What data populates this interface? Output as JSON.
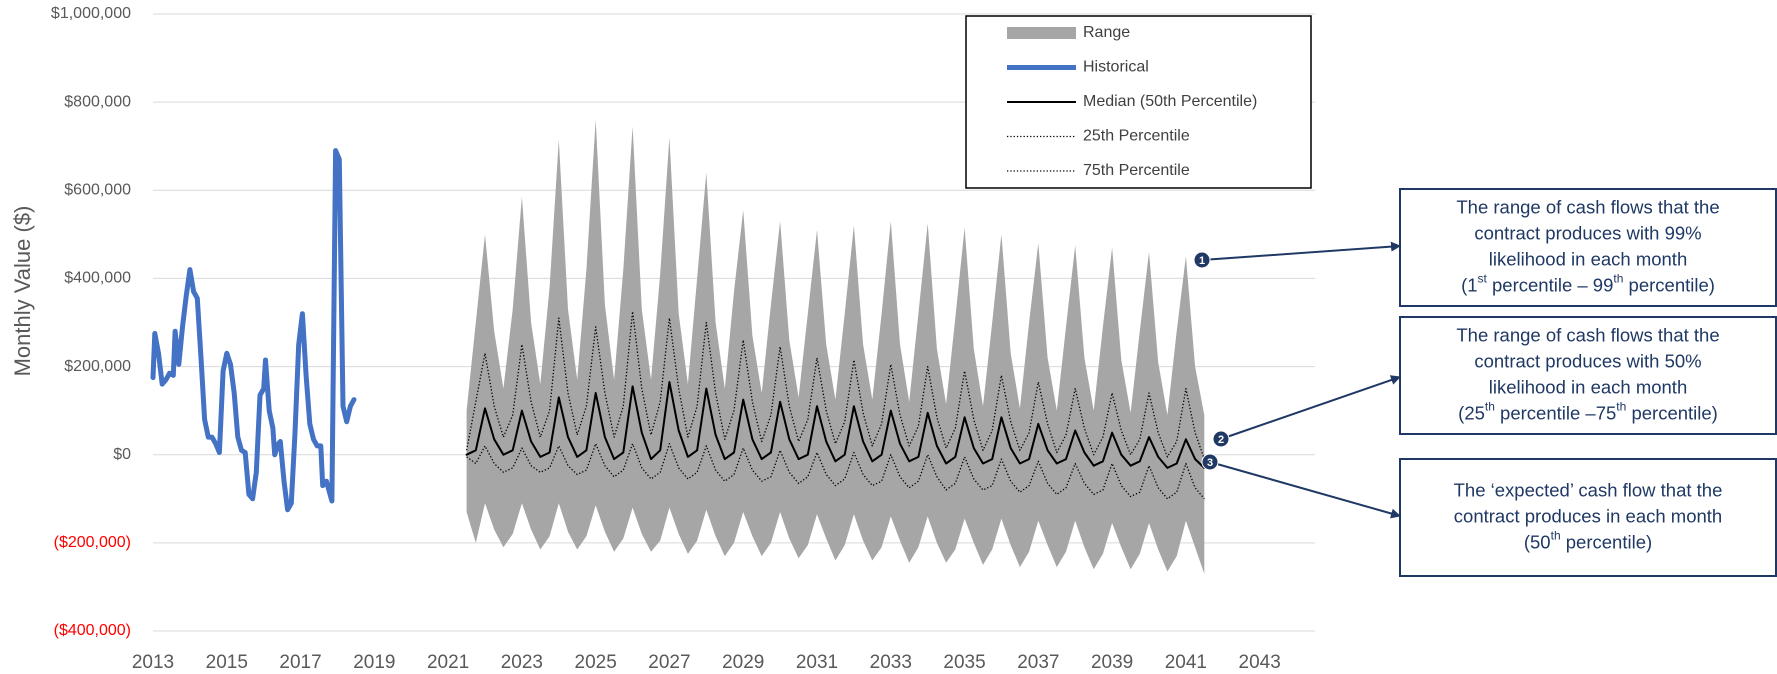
{
  "chart_data": {
    "type": "line",
    "y_label": "Monthly Value ($)",
    "xlim": [
      2013,
      2044.5
    ],
    "xticks": [
      2013,
      2015,
      2017,
      2019,
      2021,
      2023,
      2025,
      2027,
      2029,
      2031,
      2033,
      2035,
      2037,
      2039,
      2041,
      2043
    ],
    "ylim": [
      -400000,
      1000000
    ],
    "yticks": [
      {
        "value": -400000,
        "label": "($400,000)"
      },
      {
        "value": -200000,
        "label": "($200,000)"
      },
      {
        "value": 0,
        "label": "$0"
      },
      {
        "value": 200000,
        "label": "$200,000"
      },
      {
        "value": 400000,
        "label": "$400,000"
      },
      {
        "value": 600000,
        "label": "$600,000"
      },
      {
        "value": 800000,
        "label": "$800,000"
      },
      {
        "value": 1000000,
        "label": "$1,000,000"
      }
    ],
    "tick_color": "#595959",
    "negative_tick_color": "#ff0000",
    "grid": true,
    "legend": "upper right",
    "series": [
      {
        "name": "Range",
        "style": "band",
        "color": "#a6a6a6",
        "x": [
          2021.5,
          2021.75,
          2022,
          2022.25,
          2022.5,
          2022.75,
          2023,
          2023.25,
          2023.5,
          2023.75,
          2024,
          2024.25,
          2024.5,
          2024.75,
          2025,
          2025.25,
          2025.5,
          2025.75,
          2026,
          2026.25,
          2026.5,
          2026.75,
          2027,
          2027.25,
          2027.5,
          2027.75,
          2028,
          2028.25,
          2028.5,
          2028.75,
          2029,
          2029.25,
          2029.5,
          2029.75,
          2030,
          2030.25,
          2030.5,
          2030.75,
          2031,
          2031.25,
          2031.5,
          2031.75,
          2032,
          2032.25,
          2032.5,
          2032.75,
          2033,
          2033.25,
          2033.5,
          2033.75,
          2034,
          2034.25,
          2034.5,
          2034.75,
          2035,
          2035.25,
          2035.5,
          2035.75,
          2036,
          2036.25,
          2036.5,
          2036.75,
          2037,
          2037.25,
          2037.5,
          2037.75,
          2038,
          2038.25,
          2038.5,
          2038.75,
          2039,
          2039.25,
          2039.5,
          2039.75,
          2040,
          2040.25,
          2040.5,
          2040.75,
          2041,
          2041.25,
          2041.5
        ],
        "high": [
          100000,
          300000,
          500000,
          280000,
          150000,
          330000,
          585000,
          300000,
          160000,
          380000,
          715000,
          330000,
          170000,
          420000,
          760000,
          340000,
          170000,
          420000,
          745000,
          330000,
          170000,
          410000,
          720000,
          320000,
          160000,
          400000,
          640000,
          300000,
          150000,
          370000,
          555000,
          270000,
          140000,
          340000,
          530000,
          260000,
          130000,
          320000,
          510000,
          250000,
          125000,
          320000,
          520000,
          250000,
          125000,
          320000,
          530000,
          250000,
          120000,
          320000,
          525000,
          240000,
          115000,
          310000,
          515000,
          240000,
          110000,
          300000,
          500000,
          230000,
          105000,
          300000,
          480000,
          220000,
          100000,
          290000,
          475000,
          220000,
          100000,
          290000,
          470000,
          215000,
          95000,
          280000,
          460000,
          210000,
          90000,
          280000,
          450000,
          200000,
          90000
        ],
        "low": [
          -130000,
          -200000,
          -110000,
          -170000,
          -210000,
          -180000,
          -110000,
          -170000,
          -215000,
          -185000,
          -110000,
          -175000,
          -215000,
          -185000,
          -115000,
          -175000,
          -220000,
          -190000,
          -120000,
          -180000,
          -220000,
          -195000,
          -120000,
          -180000,
          -225000,
          -195000,
          -125000,
          -185000,
          -230000,
          -200000,
          -130000,
          -185000,
          -230000,
          -200000,
          -130000,
          -190000,
          -235000,
          -205000,
          -135000,
          -190000,
          -240000,
          -205000,
          -135000,
          -195000,
          -240000,
          -210000,
          -140000,
          -195000,
          -245000,
          -210000,
          -140000,
          -200000,
          -245000,
          -215000,
          -145000,
          -200000,
          -250000,
          -215000,
          -145000,
          -205000,
          -255000,
          -220000,
          -150000,
          -205000,
          -255000,
          -220000,
          -150000,
          -210000,
          -260000,
          -225000,
          -155000,
          -210000,
          -260000,
          -225000,
          -155000,
          -215000,
          -265000,
          -230000,
          -150000,
          -210000,
          -270000
        ]
      },
      {
        "name": "Historical",
        "style": "solid",
        "color": "#4472c4",
        "width": 5,
        "x": [
          2013,
          2013.05,
          2013.15,
          2013.25,
          2013.35,
          2013.45,
          2013.55,
          2013.6,
          2013.7,
          2013.8,
          2013.9,
          2014,
          2014.1,
          2014.2,
          2014.3,
          2014.4,
          2014.5,
          2014.6,
          2014.7,
          2014.8,
          2014.9,
          2015,
          2015.1,
          2015.2,
          2015.3,
          2015.4,
          2015.5,
          2015.6,
          2015.7,
          2015.8,
          2015.9,
          2016,
          2016.05,
          2016.15,
          2016.25,
          2016.3,
          2016.4,
          2016.45,
          2016.55,
          2016.65,
          2016.75,
          2016.85,
          2016.95,
          2017.05,
          2017.15,
          2017.25,
          2017.35,
          2017.45,
          2017.55,
          2017.6,
          2017.7,
          2017.85,
          2017.95,
          2018.05,
          2018.15,
          2018.25,
          2018.35,
          2018.45
        ],
        "values": [
          175000,
          275000,
          230000,
          160000,
          170000,
          185000,
          180000,
          280000,
          205000,
          290000,
          360000,
          420000,
          370000,
          355000,
          220000,
          80000,
          40000,
          40000,
          25000,
          5000,
          190000,
          230000,
          205000,
          140000,
          40000,
          10000,
          5000,
          -90000,
          -100000,
          -40000,
          135000,
          150000,
          215000,
          100000,
          60000,
          0,
          25000,
          30000,
          -60000,
          -125000,
          -110000,
          50000,
          250000,
          320000,
          180000,
          70000,
          35000,
          20000,
          20000,
          -70000,
          -60000,
          -105000,
          690000,
          670000,
          110000,
          75000,
          110000,
          125000
        ]
      },
      {
        "name": "Median (50th Percentile)",
        "style": "solid",
        "color": "#000000",
        "width": 2,
        "x": [
          2021.5,
          2021.75,
          2022,
          2022.25,
          2022.5,
          2022.75,
          2023,
          2023.25,
          2023.5,
          2023.75,
          2024,
          2024.25,
          2024.5,
          2024.75,
          2025,
          2025.25,
          2025.5,
          2025.75,
          2026,
          2026.25,
          2026.5,
          2026.75,
          2027,
          2027.25,
          2027.5,
          2027.75,
          2028,
          2028.25,
          2028.5,
          2028.75,
          2029,
          2029.25,
          2029.5,
          2029.75,
          2030,
          2030.25,
          2030.5,
          2030.75,
          2031,
          2031.25,
          2031.5,
          2031.75,
          2032,
          2032.25,
          2032.5,
          2032.75,
          2033,
          2033.25,
          2033.5,
          2033.75,
          2034,
          2034.25,
          2034.5,
          2034.75,
          2035,
          2035.25,
          2035.5,
          2035.75,
          2036,
          2036.25,
          2036.5,
          2036.75,
          2037,
          2037.25,
          2037.5,
          2037.75,
          2038,
          2038.25,
          2038.5,
          2038.75,
          2039,
          2039.25,
          2039.5,
          2039.75,
          2040,
          2040.25,
          2040.5,
          2040.75,
          2041,
          2041.25,
          2041.5
        ],
        "values": [
          0,
          10000,
          105000,
          35000,
          0,
          10000,
          100000,
          30000,
          -5000,
          5000,
          130000,
          40000,
          -5000,
          10000,
          140000,
          40000,
          -10000,
          5000,
          155000,
          50000,
          -10000,
          10000,
          165000,
          55000,
          -5000,
          10000,
          150000,
          45000,
          -10000,
          5000,
          125000,
          35000,
          -10000,
          5000,
          120000,
          35000,
          -10000,
          0,
          110000,
          30000,
          -15000,
          0,
          110000,
          30000,
          -15000,
          0,
          100000,
          25000,
          -15000,
          -5000,
          95000,
          20000,
          -20000,
          -5000,
          85000,
          15000,
          -20000,
          -10000,
          85000,
          15000,
          -20000,
          -10000,
          70000,
          10000,
          -20000,
          -10000,
          55000,
          5000,
          -25000,
          -15000,
          50000,
          0,
          -25000,
          -15000,
          40000,
          -5000,
          -30000,
          -20000,
          35000,
          -10000,
          -30000
        ]
      },
      {
        "name": "25th Percentile",
        "style": "dotted",
        "color": "#000000",
        "width": 1.3,
        "x": [
          2021.5,
          2021.75,
          2022,
          2022.25,
          2022.5,
          2022.75,
          2023,
          2023.25,
          2023.5,
          2023.75,
          2024,
          2024.25,
          2024.5,
          2024.75,
          2025,
          2025.25,
          2025.5,
          2025.75,
          2026,
          2026.25,
          2026.5,
          2026.75,
          2027,
          2027.25,
          2027.5,
          2027.75,
          2028,
          2028.25,
          2028.5,
          2028.75,
          2029,
          2029.25,
          2029.5,
          2029.75,
          2030,
          2030.25,
          2030.5,
          2030.75,
          2031,
          2031.25,
          2031.5,
          2031.75,
          2032,
          2032.25,
          2032.5,
          2032.75,
          2033,
          2033.25,
          2033.5,
          2033.75,
          2034,
          2034.25,
          2034.5,
          2034.75,
          2035,
          2035.25,
          2035.5,
          2035.75,
          2036,
          2036.25,
          2036.5,
          2036.75,
          2037,
          2037.25,
          2037.5,
          2037.75,
          2038,
          2038.25,
          2038.5,
          2038.75,
          2039,
          2039.25,
          2039.5,
          2039.75,
          2040,
          2040.25,
          2040.5,
          2040.75,
          2041,
          2041.25,
          2041.5
        ],
        "values": [
          -5000,
          -20000,
          20000,
          -20000,
          -40000,
          -30000,
          15000,
          -25000,
          -40000,
          -30000,
          20000,
          -25000,
          -45000,
          -35000,
          25000,
          -25000,
          -50000,
          -35000,
          25000,
          -30000,
          -55000,
          -40000,
          25000,
          -30000,
          -55000,
          -40000,
          20000,
          -35000,
          -60000,
          -45000,
          15000,
          -35000,
          -60000,
          -50000,
          10000,
          -40000,
          -65000,
          -50000,
          5000,
          -45000,
          -70000,
          -55000,
          5000,
          -45000,
          -70000,
          -60000,
          0,
          -50000,
          -75000,
          -60000,
          0,
          -50000,
          -80000,
          -65000,
          -5000,
          -55000,
          -80000,
          -70000,
          -10000,
          -60000,
          -85000,
          -70000,
          -15000,
          -65000,
          -90000,
          -75000,
          -20000,
          -65000,
          -90000,
          -80000,
          -20000,
          -70000,
          -95000,
          -85000,
          -25000,
          -75000,
          -100000,
          -85000,
          -20000,
          -75000,
          -100000
        ]
      },
      {
        "name": "75th Percentile",
        "style": "dotted",
        "color": "#000000",
        "width": 1.3,
        "x": [
          2021.5,
          2021.75,
          2022,
          2022.25,
          2022.5,
          2022.75,
          2023,
          2023.25,
          2023.5,
          2023.75,
          2024,
          2024.25,
          2024.5,
          2024.75,
          2025,
          2025.25,
          2025.5,
          2025.75,
          2026,
          2026.25,
          2026.5,
          2026.75,
          2027,
          2027.25,
          2027.5,
          2027.75,
          2028,
          2028.25,
          2028.5,
          2028.75,
          2029,
          2029.25,
          2029.5,
          2029.75,
          2030,
          2030.25,
          2030.5,
          2030.75,
          2031,
          2031.25,
          2031.5,
          2031.75,
          2032,
          2032.25,
          2032.5,
          2032.75,
          2033,
          2033.25,
          2033.5,
          2033.75,
          2034,
          2034.25,
          2034.5,
          2034.75,
          2035,
          2035.25,
          2035.5,
          2035.75,
          2036,
          2036.25,
          2036.5,
          2036.75,
          2037,
          2037.25,
          2037.5,
          2037.75,
          2038,
          2038.25,
          2038.5,
          2038.75,
          2039,
          2039.25,
          2039.5,
          2039.75,
          2040,
          2040.25,
          2040.5,
          2040.75,
          2041,
          2041.25,
          2041.5
        ],
        "values": [
          10000,
          120000,
          230000,
          110000,
          40000,
          90000,
          250000,
          120000,
          40000,
          100000,
          310000,
          140000,
          45000,
          110000,
          290000,
          140000,
          40000,
          110000,
          325000,
          150000,
          45000,
          120000,
          310000,
          150000,
          40000,
          110000,
          300000,
          140000,
          35000,
          100000,
          260000,
          120000,
          30000,
          90000,
          245000,
          110000,
          30000,
          80000,
          220000,
          100000,
          25000,
          75000,
          215000,
          95000,
          20000,
          70000,
          205000,
          90000,
          20000,
          65000,
          200000,
          85000,
          15000,
          60000,
          190000,
          80000,
          10000,
          55000,
          180000,
          75000,
          10000,
          50000,
          165000,
          70000,
          5000,
          45000,
          150000,
          60000,
          0,
          40000,
          140000,
          55000,
          0,
          35000,
          140000,
          50000,
          -5000,
          30000,
          150000,
          50000,
          -10000
        ]
      }
    ],
    "annotations": [
      {
        "label": "1",
        "lines": [
          [
            "The range of cash flows that the"
          ],
          [
            "contract produces with 99%"
          ],
          [
            "likelihood in each month"
          ],
          [
            "(1",
            "st",
            " percentile – 99",
            "th",
            " percentile)"
          ]
        ]
      },
      {
        "label": "2",
        "lines": [
          [
            "The range of cash flows that the"
          ],
          [
            "contract produces with 50%"
          ],
          [
            "likelihood in each month"
          ],
          [
            "(25",
            "th",
            " percentile –75",
            "th",
            " percentile)"
          ]
        ]
      },
      {
        "label": "3",
        "lines": [
          [
            "The ‘expected’ cash flow that the"
          ],
          [
            "contract produces in each month"
          ],
          [
            "(50",
            "th",
            " percentile)"
          ]
        ]
      }
    ],
    "annotation_color": "#1f3864"
  }
}
